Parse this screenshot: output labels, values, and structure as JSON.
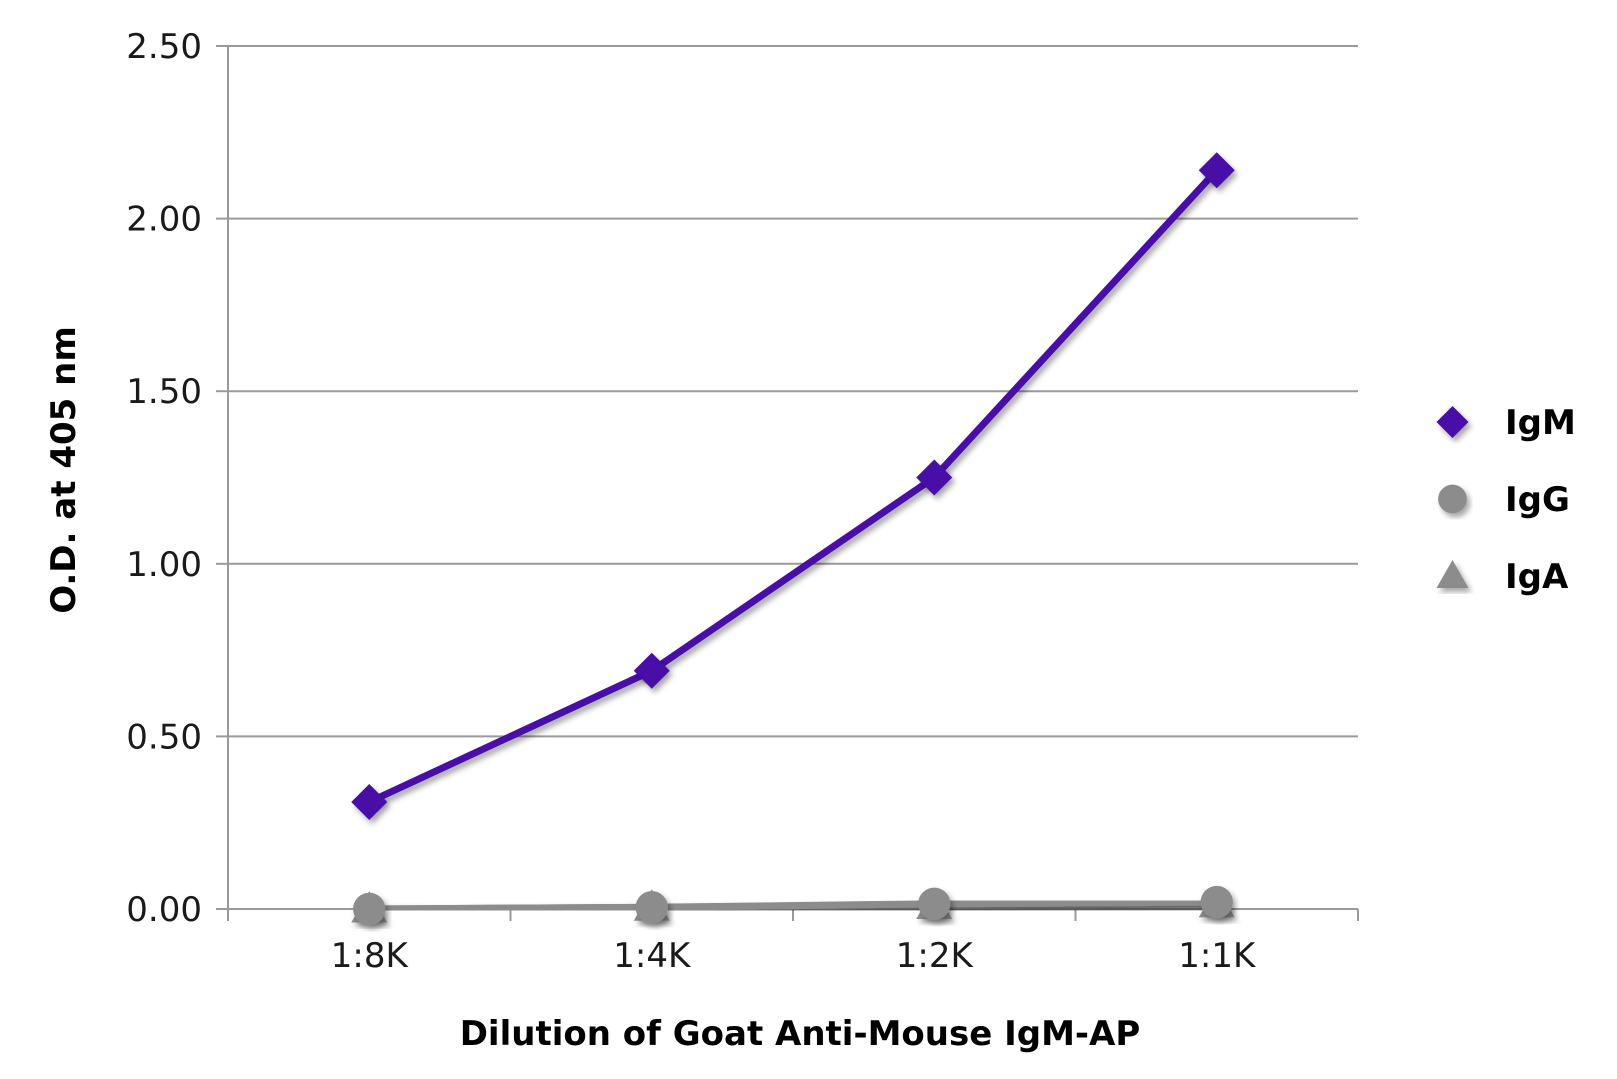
{
  "chart_data": {
    "type": "line",
    "title": "",
    "xlabel": "Dilution of Goat Anti-Mouse IgM-AP",
    "ylabel": "O.D. at 405 nm",
    "categories": [
      "1:8K",
      "1:4K",
      "1:2K",
      "1:1K"
    ],
    "ylim": [
      0,
      2.5
    ],
    "yticks": [
      0.0,
      0.5,
      1.0,
      1.5,
      2.0,
      2.5
    ],
    "ytick_labels": [
      "0.00",
      "0.50",
      "1.00",
      "1.50",
      "2.00",
      "2.50"
    ],
    "grid": "horizontal",
    "legend": "right",
    "series": [
      {
        "name": "IgM",
        "marker": "diamond",
        "color": "#4a0aa8",
        "values": [
          0.31,
          0.69,
          1.25,
          2.14
        ]
      },
      {
        "name": "IgG",
        "marker": "circle",
        "color": "#8c8c8c",
        "values": [
          0.0,
          0.005,
          0.015,
          0.02
        ]
      },
      {
        "name": "IgA",
        "marker": "triangle",
        "color": "#8c8c8c",
        "values": [
          0.0,
          0.005,
          0.01,
          0.015
        ]
      }
    ]
  }
}
